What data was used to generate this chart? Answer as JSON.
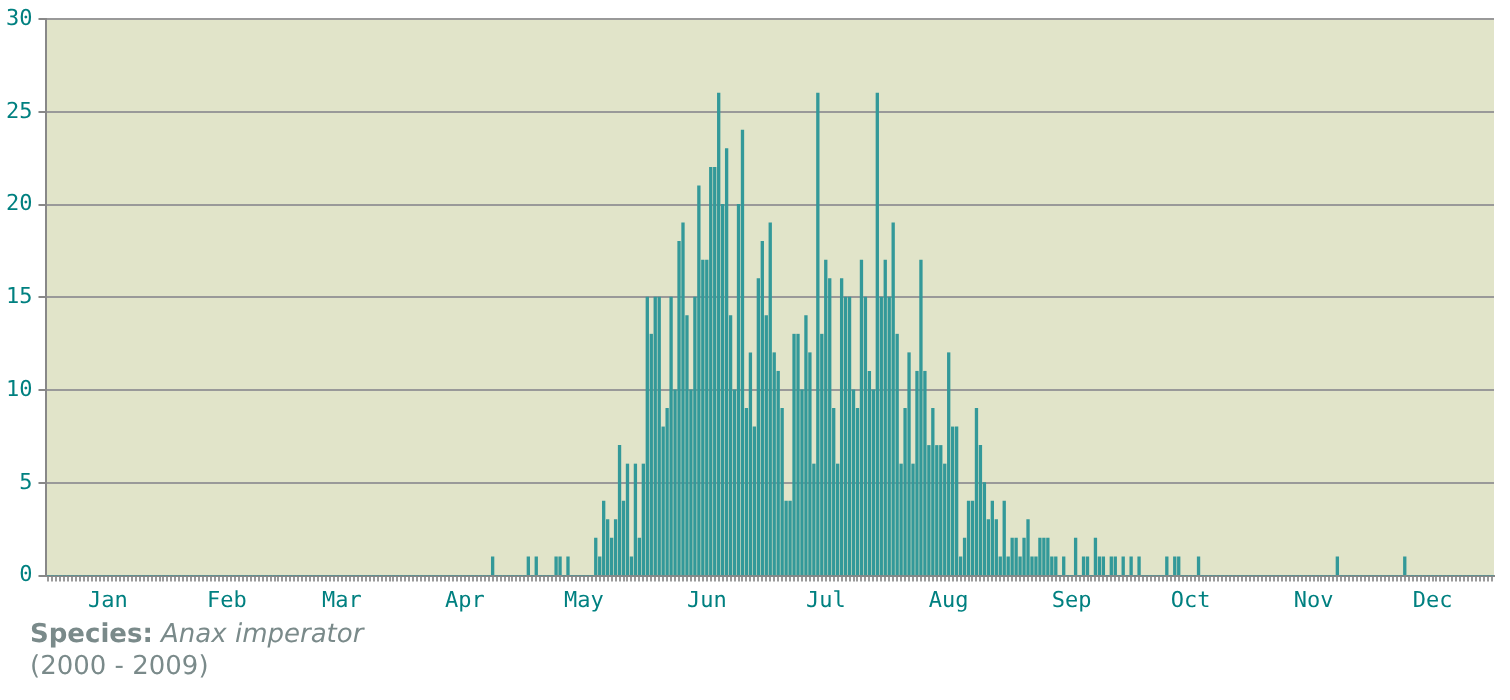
{
  "chart_data": {
    "type": "bar",
    "color": "#339999",
    "categories": [
      null,
      null,
      null,
      null,
      null,
      null,
      null,
      null,
      null,
      null,
      null,
      null,
      null,
      null,
      null,
      "Jan",
      null,
      null,
      null,
      null,
      null,
      null,
      null,
      null,
      null,
      null,
      null,
      null,
      null,
      null,
      null,
      null,
      null,
      null,
      null,
      null,
      null,
      null,
      null,
      null,
      null,
      null,
      null,
      null,
      null,
      "Feb",
      null,
      null,
      null,
      null,
      null,
      null,
      null,
      null,
      null,
      null,
      null,
      null,
      null,
      null,
      null,
      null,
      null,
      null,
      null,
      null,
      null,
      null,
      null,
      null,
      null,
      null,
      null,
      null,
      "Mar",
      null,
      null,
      null,
      null,
      null,
      null,
      null,
      null,
      null,
      null,
      null,
      null,
      null,
      null,
      null,
      null,
      null,
      null,
      null,
      null,
      null,
      null,
      null,
      null,
      null,
      null,
      null,
      null,
      null,
      null,
      "Apr",
      null,
      null,
      null,
      null,
      null,
      null,
      null,
      null,
      null,
      null,
      null,
      null,
      null,
      null,
      null,
      null,
      null,
      null,
      null,
      null,
      null,
      null,
      null,
      null,
      null,
      null,
      null,
      null,
      null,
      "May",
      null,
      null,
      null,
      null,
      null,
      null,
      null,
      null,
      null,
      null,
      null,
      null,
      null,
      null,
      null,
      null,
      null,
      null,
      null,
      null,
      null,
      null,
      null,
      null,
      null,
      null,
      null,
      null,
      null,
      null,
      "Jun",
      null,
      null,
      null,
      null,
      null,
      null,
      null,
      null,
      null,
      null,
      null,
      null,
      null,
      null,
      null,
      null,
      null,
      null,
      null,
      null,
      null,
      null,
      null,
      null,
      null,
      null,
      null,
      null,
      null,
      "Jul",
      null,
      null,
      null,
      null,
      null,
      null,
      null,
      null,
      null,
      null,
      null,
      null,
      null,
      null,
      null,
      null,
      null,
      null,
      null,
      null,
      null,
      null,
      null,
      null,
      null,
      null,
      null,
      null,
      null,
      null,
      "Aug",
      null,
      null,
      null,
      null,
      null,
      null,
      null,
      null,
      null,
      null,
      null,
      null,
      null,
      null,
      null,
      null,
      null,
      null,
      null,
      null,
      null,
      null,
      null,
      null,
      null,
      null,
      null,
      null,
      null,
      null,
      "Sep",
      null,
      null,
      null,
      null,
      null,
      null,
      null,
      null,
      null,
      null,
      null,
      null,
      null,
      null,
      null,
      null,
      null,
      null,
      null,
      null,
      null,
      null,
      null,
      null,
      null,
      null,
      null,
      null,
      null,
      "Oct",
      null,
      null,
      null,
      null,
      null,
      null,
      null,
      null,
      null,
      null,
      null,
      null,
      null,
      null,
      null,
      null,
      null,
      null,
      null,
      null,
      null,
      null,
      null,
      null,
      null,
      null,
      null,
      null,
      null,
      null,
      "Nov",
      null,
      null,
      null,
      null,
      null,
      null,
      null,
      null,
      null,
      null,
      null,
      null,
      null,
      null,
      null,
      null,
      null,
      null,
      null,
      null,
      null,
      null,
      null,
      null,
      null,
      null,
      null,
      null,
      null,
      "Dec",
      null,
      null,
      null,
      null,
      null,
      null,
      null,
      null,
      null,
      null,
      null,
      null,
      null,
      null,
      null
    ],
    "values": [
      0,
      0,
      0,
      0,
      0,
      0,
      0,
      0,
      0,
      0,
      0,
      0,
      0,
      0,
      0,
      0,
      0,
      0,
      0,
      0,
      0,
      0,
      0,
      0,
      0,
      0,
      0,
      0,
      0,
      0,
      0,
      0,
      0,
      0,
      0,
      0,
      0,
      0,
      0,
      0,
      0,
      0,
      0,
      0,
      0,
      0,
      0,
      0,
      0,
      0,
      0,
      0,
      0,
      0,
      0,
      0,
      0,
      0,
      0,
      0,
      0,
      0,
      0,
      0,
      0,
      0,
      0,
      0,
      0,
      0,
      0,
      0,
      0,
      0,
      0,
      0,
      0,
      0,
      0,
      0,
      0,
      0,
      0,
      0,
      0,
      0,
      0,
      0,
      0,
      0,
      0,
      0,
      0,
      0,
      0,
      0,
      0,
      0,
      0,
      0,
      0,
      0,
      0,
      0,
      0,
      0,
      0,
      0,
      0,
      0,
      0,
      0,
      1,
      0,
      0,
      0,
      0,
      0,
      0,
      0,
      0,
      1,
      0,
      1,
      0,
      0,
      0,
      0,
      1,
      1,
      0,
      1,
      0,
      0,
      0,
      0,
      0,
      0,
      2,
      1,
      4,
      3,
      2,
      3,
      7,
      4,
      6,
      1,
      6,
      2,
      6,
      15,
      13,
      15,
      15,
      8,
      9,
      15,
      10,
      18,
      19,
      14,
      10,
      15,
      21,
      17,
      17,
      22,
      22,
      26,
      20,
      23,
      14,
      10,
      20,
      24,
      9,
      12,
      8,
      16,
      18,
      14,
      19,
      12,
      11,
      9,
      4,
      4,
      13,
      13,
      10,
      14,
      12,
      6,
      26,
      13,
      17,
      16,
      9,
      6,
      16,
      15,
      15,
      10,
      9,
      17,
      15,
      11,
      10,
      26,
      15,
      17,
      15,
      19,
      13,
      6,
      9,
      12,
      6,
      11,
      17,
      11,
      7,
      9,
      7,
      7,
      6,
      12,
      8,
      8,
      1,
      2,
      4,
      4,
      9,
      7,
      5,
      3,
      4,
      3,
      1,
      4,
      1,
      2,
      2,
      1,
      2,
      3,
      1,
      1,
      2,
      2,
      2,
      1,
      1,
      0,
      1,
      0,
      0,
      2,
      0,
      1,
      1,
      0,
      2,
      1,
      1,
      0,
      1,
      1,
      0,
      1,
      0,
      1,
      0,
      1,
      0,
      0,
      0,
      0,
      0,
      0,
      1,
      0,
      1,
      1,
      0,
      0,
      0,
      0,
      1,
      0,
      0,
      0,
      0,
      0,
      0,
      0,
      0,
      0,
      0,
      0,
      0,
      0,
      0,
      0,
      0,
      0,
      0,
      0,
      0,
      0,
      0,
      0,
      0,
      0,
      0,
      0,
      0,
      0,
      0,
      0,
      0,
      0,
      0,
      1,
      0,
      0,
      0,
      0,
      0,
      0,
      0,
      0,
      0,
      0,
      0,
      0,
      0,
      0,
      0,
      0,
      1,
      0,
      0,
      0,
      0,
      0,
      0,
      0,
      0,
      0,
      0,
      0,
      0,
      0,
      0,
      0,
      0,
      0,
      0,
      0,
      0,
      0,
      0
    ],
    "ylim": [
      0,
      30
    ],
    "yticks": [
      0,
      5,
      10,
      15,
      20,
      25,
      30
    ],
    "grid": "y",
    "legend": false,
    "annotations": [
      "Species: Anax imperator",
      "(2000 - 2009)"
    ]
  }
}
